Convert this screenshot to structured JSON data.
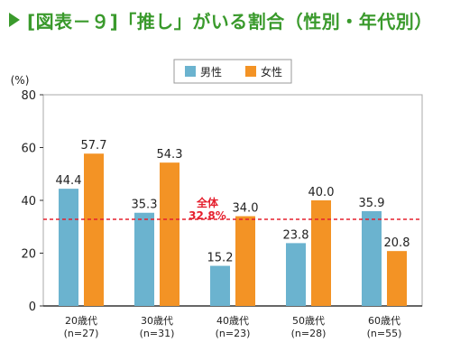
{
  "figure_title": "[図表－９]「推し」がいる割合（性別・年代別）",
  "colors": {
    "title": "#3a9a2c",
    "male": "#6bb3cf",
    "female": "#f39325",
    "overall": "#e5202e",
    "axis": "#333333",
    "frame": "#aaaaaa"
  },
  "chart_data": {
    "type": "bar",
    "unit_label": "(%)",
    "categories": [
      "20歳代\n(n=27)",
      "30歳代\n(n=31)",
      "40歳代\n(n=23)",
      "50歳代\n(n=28)",
      "60歳代\n(n=55)"
    ],
    "series": [
      {
        "name": "男性",
        "values": [
          44.4,
          35.3,
          15.2,
          23.8,
          35.9
        ]
      },
      {
        "name": "女性",
        "values": [
          57.7,
          54.3,
          34.0,
          40.0,
          20.8
        ]
      }
    ],
    "overall": {
      "label": "全体",
      "value": 32.8,
      "value_label": "32.8%"
    },
    "ylim": [
      0,
      80
    ],
    "yticks": [
      0,
      20,
      40,
      60,
      80
    ],
    "legend_position": "top-center",
    "grid": false
  }
}
